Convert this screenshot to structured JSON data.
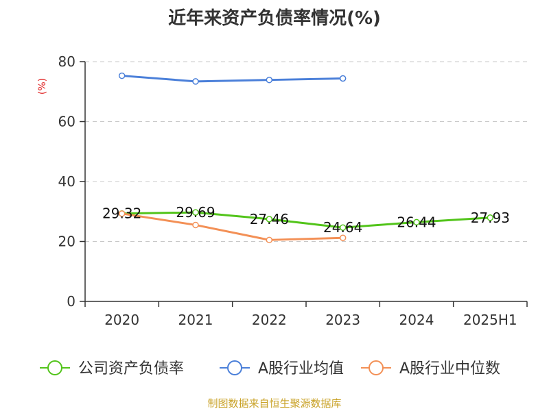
{
  "chart_data": {
    "type": "line",
    "title": "近年来资产负债率情况(%)",
    "ylabel": "(%)",
    "xlabel": "",
    "categories": [
      "2020",
      "2021",
      "2022",
      "2023",
      "2024",
      "2025H1"
    ],
    "ylim": [
      0,
      80
    ],
    "yticks": [
      0,
      20,
      40,
      60,
      80
    ],
    "grid": true,
    "legend_position": "bottom",
    "series": [
      {
        "name": "公司资产负债率",
        "color": "#52c41a",
        "values": [
          29.32,
          29.69,
          27.46,
          24.64,
          26.44,
          27.93
        ],
        "labels": [
          "29.32",
          "29.69",
          "27.46",
          "24.64",
          "26.44",
          "27.93"
        ]
      },
      {
        "name": "A股行业均值",
        "color": "#4a7fd9",
        "values": [
          75.3,
          73.4,
          73.9,
          74.4,
          null,
          null
        ]
      },
      {
        "name": "A股行业中位数",
        "color": "#f39056",
        "values": [
          29.3,
          25.5,
          20.5,
          21.2,
          null,
          null
        ]
      }
    ]
  },
  "colors": {
    "axis": "#333333",
    "grid": "#c8c8c8",
    "unit": "#e02020",
    "source": "#c9a227"
  },
  "footer": {
    "source": "制图数据来自恒生聚源数据库"
  }
}
